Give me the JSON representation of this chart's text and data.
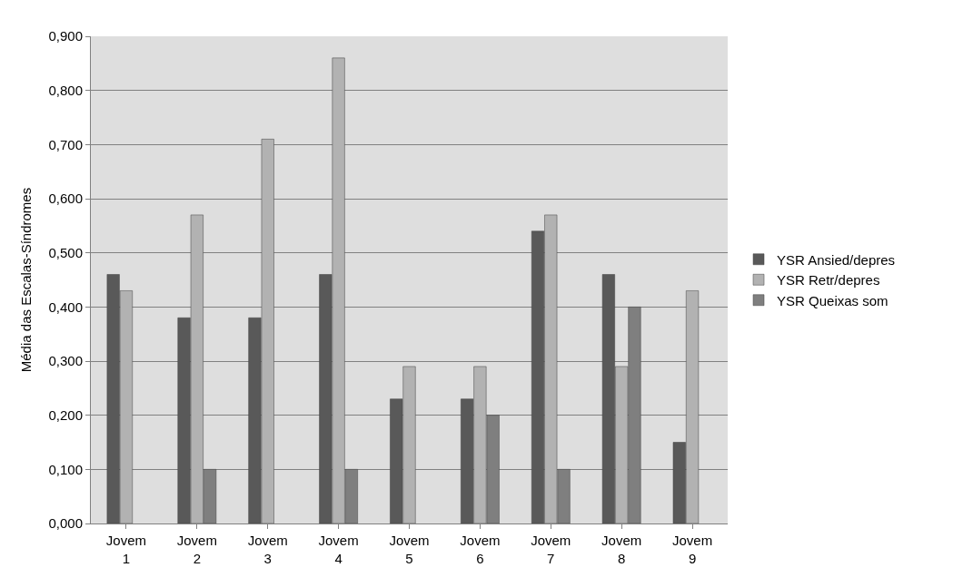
{
  "chart_data": {
    "type": "bar",
    "ylabel": "Média das Escalas-Síndromes",
    "categories": [
      "Jovem 1",
      "Jovem 2",
      "Jovem 3",
      "Jovem 4",
      "Jovem 5",
      "Jovem 6",
      "Jovem 7",
      "Jovem 8",
      "Jovem 9"
    ],
    "series": [
      {
        "name": "YSR Ansied/depres",
        "color": "#595959",
        "values": [
          0.46,
          0.38,
          0.38,
          0.46,
          0.23,
          0.23,
          0.54,
          0.46,
          0.15
        ]
      },
      {
        "name": "YSR Retr/depres",
        "color": "#b2b2b2",
        "values": [
          0.43,
          0.57,
          0.71,
          0.86,
          0.29,
          0.29,
          0.57,
          0.29,
          0.43
        ]
      },
      {
        "name": "YSR Queixas som",
        "color": "#7f7f7f",
        "values": [
          null,
          0.1,
          null,
          0.1,
          null,
          0.2,
          0.1,
          0.4,
          null
        ]
      }
    ],
    "ylim": [
      0,
      0.9
    ],
    "yticks": [
      {
        "value": 0,
        "label": "0,000"
      },
      {
        "value": 0.1,
        "label": "0,100"
      },
      {
        "value": 0.2,
        "label": "0,200"
      },
      {
        "value": 0.3,
        "label": "0,300"
      },
      {
        "value": 0.4,
        "label": "0,400"
      },
      {
        "value": 0.5,
        "label": "0,500"
      },
      {
        "value": 0.6,
        "label": "0,600"
      },
      {
        "value": 0.7,
        "label": "0,700"
      },
      {
        "value": 0.8,
        "label": "0,800"
      },
      {
        "value": 0.9,
        "label": "0,900"
      }
    ],
    "grid": "y",
    "legend": "right"
  }
}
